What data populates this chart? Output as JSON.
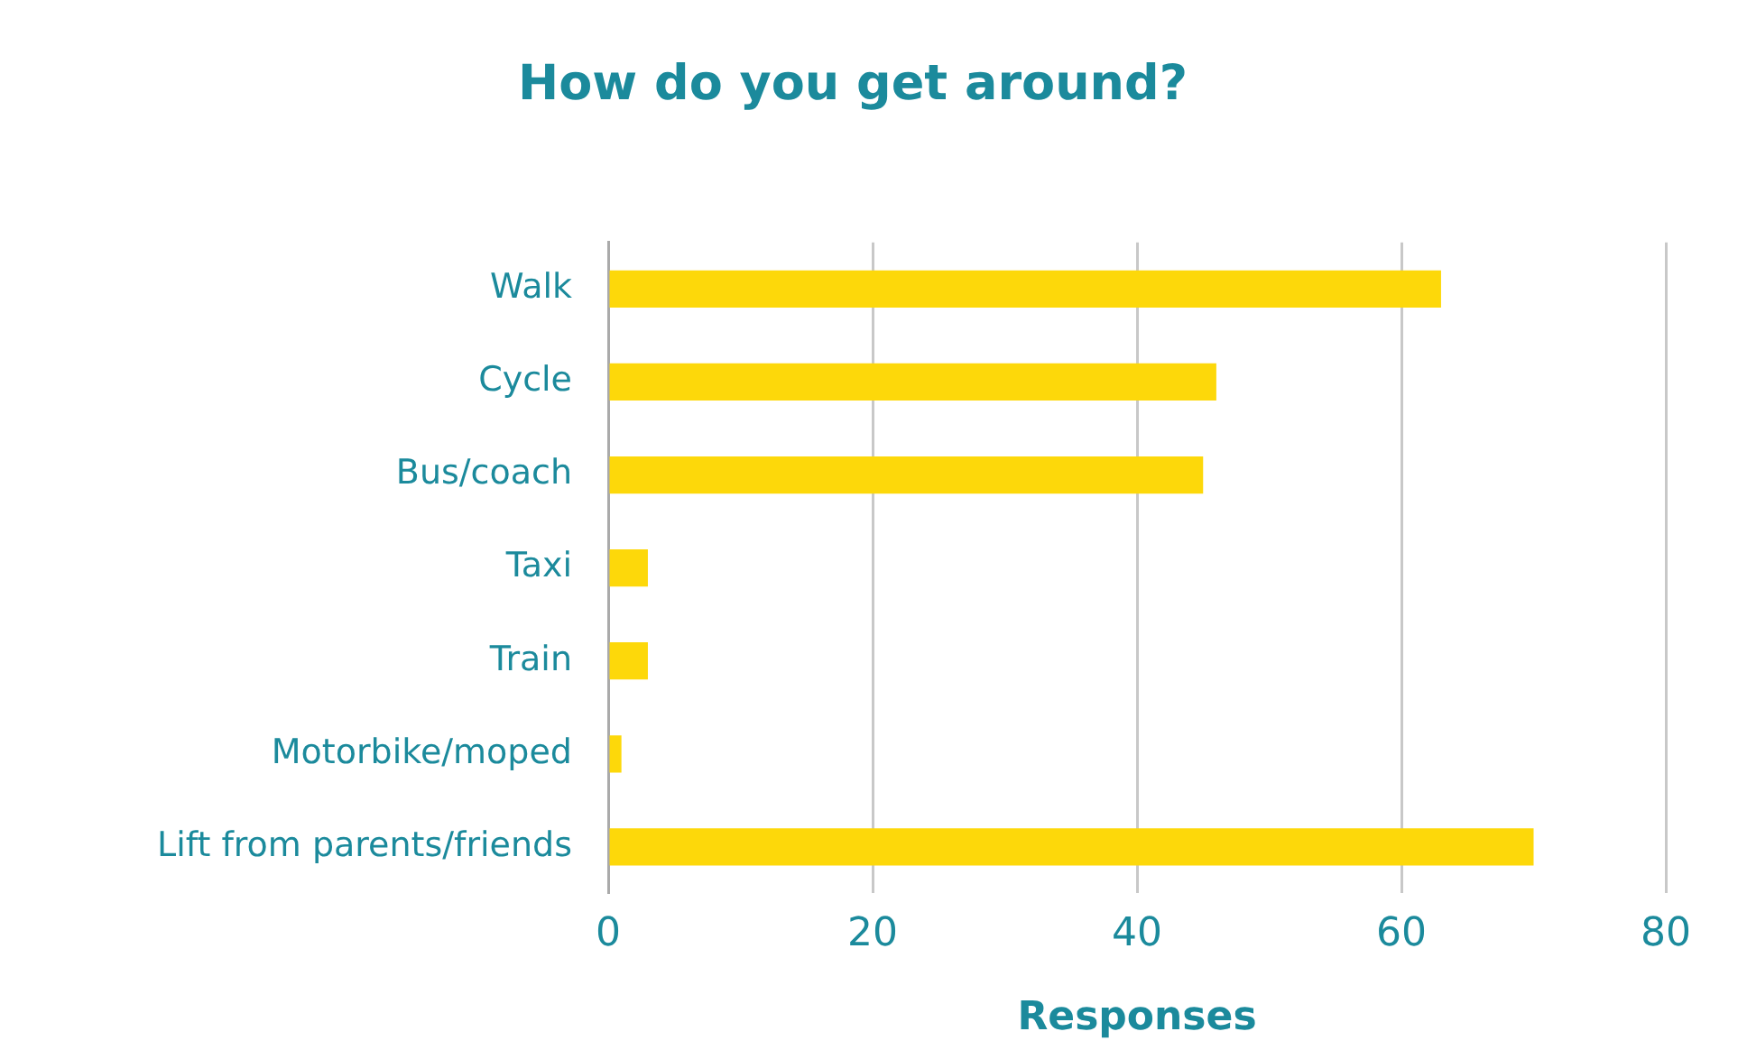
{
  "chart_data": {
    "type": "bar",
    "orientation": "horizontal",
    "title": "How do you get around?",
    "xlabel": "Responses",
    "categories": [
      "Walk",
      "Cycle",
      "Bus/coach",
      "Taxi",
      "Train",
      "Motorbike/moped",
      "Lift from parents/friends"
    ],
    "values": [
      63,
      46,
      45,
      3,
      3,
      1,
      70
    ],
    "color": "#fdd80a",
    "xlim": [
      0,
      80
    ],
    "xticks": [
      0,
      20,
      40,
      60,
      80
    ],
    "grid": "x",
    "legend": false
  }
}
